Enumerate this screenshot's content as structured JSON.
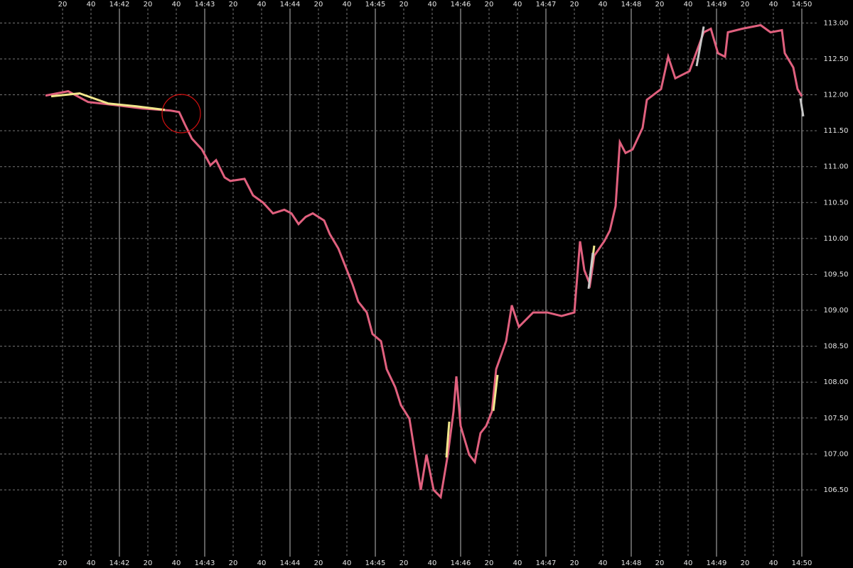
{
  "chart_data": {
    "type": "line",
    "background": "#000000",
    "grid": true,
    "xlim": [
      52836,
      53411
    ],
    "ylim": [
      105.61,
      113.32
    ],
    "xticks": [
      {
        "value": 52880,
        "label": "20"
      },
      {
        "value": 52900,
        "label": "40"
      },
      {
        "value": 52920,
        "label": "14:42"
      },
      {
        "value": 52940,
        "label": "20"
      },
      {
        "value": 52960,
        "label": "40"
      },
      {
        "value": 52980,
        "label": "14:43"
      },
      {
        "value": 53000,
        "label": "20"
      },
      {
        "value": 53020,
        "label": "40"
      },
      {
        "value": 53040,
        "label": "14:44"
      },
      {
        "value": 53060,
        "label": "20"
      },
      {
        "value": 53080,
        "label": "40"
      },
      {
        "value": 53100,
        "label": "14:45"
      },
      {
        "value": 53120,
        "label": "20"
      },
      {
        "value": 53140,
        "label": "40"
      },
      {
        "value": 53160,
        "label": "14:46"
      },
      {
        "value": 53180,
        "label": "20"
      },
      {
        "value": 53200,
        "label": "40"
      },
      {
        "value": 53220,
        "label": "14:47"
      },
      {
        "value": 53240,
        "label": "20"
      },
      {
        "value": 53260,
        "label": "40"
      },
      {
        "value": 53280,
        "label": "14:48"
      },
      {
        "value": 53300,
        "label": "20"
      },
      {
        "value": 53320,
        "label": "40"
      },
      {
        "value": 53340,
        "label": "14:49"
      },
      {
        "value": 53360,
        "label": "20"
      },
      {
        "value": 53380,
        "label": "40"
      },
      {
        "value": 53400,
        "label": "14:50"
      }
    ],
    "yticks": [
      {
        "value": 106.5,
        "label": "106.50"
      },
      {
        "value": 107,
        "label": "107.00"
      },
      {
        "value": 107.5,
        "label": "107.50"
      },
      {
        "value": 108,
        "label": "108.00"
      },
      {
        "value": 108.5,
        "label": "108.50"
      },
      {
        "value": 109,
        "label": "109.00"
      },
      {
        "value": 109.5,
        "label": "109.50"
      },
      {
        "value": 110,
        "label": "110.00"
      },
      {
        "value": 110.5,
        "label": "110.50"
      },
      {
        "value": 111,
        "label": "111.00"
      },
      {
        "value": 111.5,
        "label": "111.50"
      },
      {
        "value": 112,
        "label": "112.00"
      },
      {
        "value": 112.5,
        "label": "112.50"
      },
      {
        "value": 113,
        "label": "113.00"
      }
    ],
    "series": [
      {
        "color": "#e0607e",
        "x": [
          52868,
          52884,
          52898,
          52916,
          52936,
          52956,
          52962,
          52966,
          52971,
          52978,
          52984,
          52988,
          52994,
          52998,
          53008,
          53014,
          53021,
          53028,
          53036,
          53041,
          53046,
          53051,
          53056,
          53064,
          53068,
          53074,
          53078,
          53084,
          53088,
          53094,
          53098,
          53104,
          53108,
          53114,
          53118,
          53124,
          53128,
          53132,
          53136,
          53141,
          53146,
          53151,
          53155,
          53157,
          53160,
          53166,
          53170,
          53174,
          53178,
          53182,
          53185,
          53192,
          53196,
          53201,
          53211,
          53221,
          53231,
          53240,
          53244,
          53247,
          53251,
          53254,
          53261,
          53265,
          53269,
          53272,
          53276,
          53281,
          53288,
          53291,
          53301,
          53306,
          53311,
          53321,
          53331,
          53336,
          53341,
          53346,
          53348,
          53358,
          53371,
          53378,
          53386,
          53388,
          53394,
          53397,
          53400
        ],
        "values": [
          111.99,
          112.05,
          111.9,
          111.86,
          111.81,
          111.78,
          111.76,
          111.59,
          111.39,
          111.24,
          111.02,
          111.09,
          110.85,
          110.8,
          110.83,
          110.6,
          110.5,
          110.35,
          110.4,
          110.35,
          110.2,
          110.3,
          110.35,
          110.25,
          110.06,
          109.86,
          109.66,
          109.36,
          109.12,
          108.97,
          108.67,
          108.57,
          108.18,
          107.93,
          107.68,
          107.49,
          106.99,
          106.5,
          106.99,
          106.5,
          106.4,
          106.99,
          107.59,
          108.08,
          107.39,
          106.99,
          106.89,
          107.29,
          107.39,
          107.59,
          108.18,
          108.57,
          109.07,
          108.77,
          108.97,
          108.97,
          108.92,
          108.97,
          109.96,
          109.56,
          109.36,
          109.76,
          109.96,
          110.11,
          110.45,
          111.34,
          111.19,
          111.24,
          111.54,
          111.93,
          112.08,
          112.53,
          112.23,
          112.33,
          112.87,
          112.92,
          112.58,
          112.53,
          112.87,
          112.92,
          112.97,
          112.87,
          112.9,
          112.58,
          112.38,
          112.08,
          111.98
        ]
      },
      {
        "color": "#f0e68c",
        "x": [
          52872,
          52892,
          52912,
          52932,
          52952,
          52960,
          53150,
          53152,
          53154,
          53183,
          53186,
          53188,
          53252,
          53254
        ],
        "values": [
          111.98,
          112.02,
          111.88,
          111.84,
          111.79,
          null,
          106.95,
          107.45,
          null,
          107.6,
          108.1,
          null,
          109.6,
          109.9
        ]
      },
      {
        "color": "#c8c8c8",
        "x": [
          53250,
          53253,
          53256,
          53326,
          53331,
          53336,
          53399,
          53401
        ],
        "values": [
          109.3,
          109.8,
          null,
          112.4,
          112.95,
          null,
          111.95,
          111.7
        ]
      }
    ]
  }
}
